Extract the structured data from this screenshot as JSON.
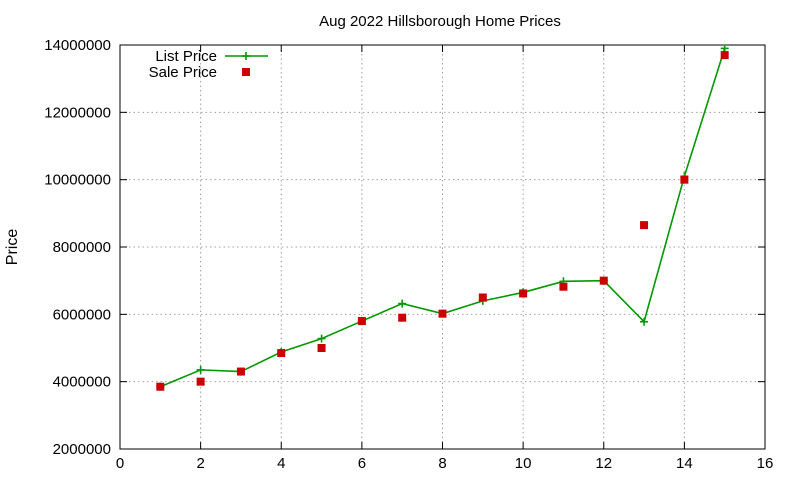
{
  "chart_data": {
    "type": "line",
    "title": "Aug 2022 Hillsborough Home Prices",
    "xlabel": "",
    "ylabel": "Price",
    "xlim": [
      0,
      16
    ],
    "ylim": [
      2000000,
      14000000
    ],
    "xticks": [
      0,
      2,
      4,
      6,
      8,
      10,
      12,
      14,
      16
    ],
    "yticks": [
      2000000,
      4000000,
      6000000,
      8000000,
      10000000,
      12000000,
      14000000
    ],
    "xtick_labels": [
      "0",
      "2",
      "4",
      "6",
      "8",
      "10",
      "12",
      "14",
      "16"
    ],
    "ytick_labels": [
      "2000000",
      "4000000",
      "6000000",
      "8000000",
      "10000000",
      "12000000",
      "14000000"
    ],
    "grid": true,
    "legend_position": "top-left",
    "series": [
      {
        "name": "List Price",
        "style": "line-with-plus-markers",
        "color": "#009900",
        "x": [
          1,
          2,
          3,
          4,
          5,
          6,
          7,
          8,
          9,
          10,
          11,
          12,
          13,
          14,
          15
        ],
        "y": [
          3850000,
          4350000,
          4300000,
          4880000,
          5280000,
          5800000,
          6320000,
          6020000,
          6400000,
          6650000,
          6980000,
          7000000,
          5780000,
          10100000,
          13900000
        ]
      },
      {
        "name": "Sale Price",
        "style": "square-markers",
        "color": "#cc0000",
        "x": [
          1,
          2,
          3,
          4,
          5,
          6,
          7,
          8,
          9,
          10,
          11,
          12,
          13,
          14,
          15
        ],
        "y": [
          3850000,
          4000000,
          4300000,
          4850000,
          5000000,
          5800000,
          5900000,
          6020000,
          6500000,
          6620000,
          6820000,
          7000000,
          8650000,
          10000000,
          13700000
        ]
      }
    ]
  }
}
